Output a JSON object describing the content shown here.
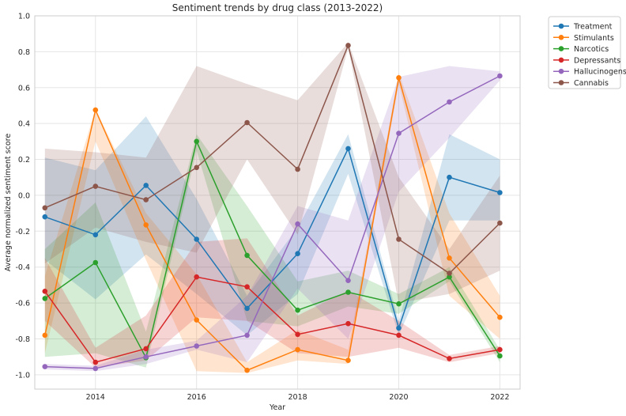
{
  "chart_data": {
    "type": "line",
    "title": "Sentiment trends by drug class (2013-2022)",
    "xlabel": "Year",
    "ylabel": "Average normalized sentiment score",
    "xlim": [
      2012.8,
      2022.4
    ],
    "ylim": [
      -1.08,
      1.0
    ],
    "x_ticks": [
      "2014",
      "2016",
      "2018",
      "2020",
      "2022"
    ],
    "y_ticks": [
      "-1.0",
      "-0.8",
      "-0.6",
      "-0.4",
      "-0.2",
      "0.0",
      "0.2",
      "0.4",
      "0.6",
      "0.8",
      "1.0"
    ],
    "grid": true,
    "legend_position": "outside-top-right",
    "series": [
      {
        "name": "Treatment",
        "color": "#1f77b4",
        "x": [
          2013,
          2014,
          2015,
          2016,
          2017,
          2018,
          2019,
          2020,
          2021,
          2022
        ],
        "y": [
          -0.12,
          -0.22,
          0.055,
          -0.245,
          -0.63,
          -0.325,
          0.26,
          -0.74,
          0.1,
          0.015
        ],
        "band_low": [
          -0.36,
          -0.58,
          -0.33,
          -0.55,
          -0.78,
          -0.55,
          0.12,
          -0.78,
          -0.14,
          -0.14
        ],
        "band_high": [
          0.21,
          0.14,
          0.44,
          -0.02,
          -0.56,
          -0.18,
          0.34,
          -0.7,
          0.34,
          0.2
        ]
      },
      {
        "name": "Stimulants",
        "color": "#ff7f0e",
        "x": [
          2013,
          2014,
          2015,
          2016,
          2017,
          2018,
          2019,
          2020,
          2021,
          2022
        ],
        "y": [
          -0.78,
          0.475,
          -0.165,
          -0.695,
          -0.975,
          -0.86,
          -0.92,
          0.655,
          -0.35,
          -0.68
        ],
        "band_low": [
          -0.88,
          0.3,
          -0.36,
          -0.98,
          -0.99,
          -0.92,
          -0.94,
          0.62,
          -0.56,
          -0.8
        ],
        "band_high": [
          -0.45,
          0.48,
          -0.1,
          -0.44,
          -0.93,
          -0.75,
          -0.86,
          0.68,
          -0.1,
          -0.56
        ]
      },
      {
        "name": "Narcotics",
        "color": "#2ca02c",
        "x": [
          2013,
          2014,
          2015,
          2016,
          2017,
          2018,
          2019,
          2020,
          2021,
          2022
        ],
        "y": [
          -0.575,
          -0.375,
          -0.905,
          0.3,
          -0.335,
          -0.64,
          -0.54,
          -0.605,
          -0.455,
          -0.895
        ],
        "band_low": [
          -0.9,
          -0.88,
          -0.96,
          0.25,
          -0.7,
          -0.73,
          -0.62,
          -0.66,
          -0.48,
          -0.93
        ],
        "band_high": [
          -0.3,
          -0.04,
          -0.76,
          0.34,
          -0.06,
          -0.48,
          -0.42,
          -0.55,
          -0.4,
          -0.86
        ]
      },
      {
        "name": "Depressants",
        "color": "#d62728",
        "x": [
          2013,
          2014,
          2015,
          2016,
          2017,
          2018,
          2019,
          2020,
          2021,
          2022
        ],
        "y": [
          -0.535,
          -0.93,
          -0.855,
          -0.455,
          -0.51,
          -0.775,
          -0.715,
          -0.78,
          -0.91,
          -0.86
        ],
        "band_low": [
          -0.7,
          -0.96,
          -0.92,
          -0.68,
          -0.7,
          -0.88,
          -0.9,
          -0.85,
          -0.93,
          -0.88
        ],
        "band_high": [
          -0.35,
          -0.85,
          -0.67,
          -0.26,
          -0.24,
          -0.67,
          -0.53,
          -0.7,
          -0.89,
          -0.84
        ]
      },
      {
        "name": "Hallucinogens",
        "color": "#9467bd",
        "x": [
          2013,
          2014,
          2015,
          2016,
          2017,
          2018,
          2019,
          2020,
          2021,
          2022
        ],
        "y": [
          -0.955,
          -0.965,
          -0.9,
          -0.84,
          -0.78,
          -0.16,
          -0.475,
          0.345,
          0.52,
          0.665
        ],
        "band_low": [
          -0.97,
          -0.98,
          -0.94,
          -0.86,
          -0.93,
          -0.52,
          -0.8,
          0.02,
          0.32,
          0.64
        ],
        "band_high": [
          -0.94,
          -0.95,
          -0.86,
          -0.81,
          -0.56,
          -0.06,
          -0.14,
          0.66,
          0.72,
          0.69
        ]
      },
      {
        "name": "Cannabis",
        "color": "#8c564b",
        "x": [
          2013,
          2014,
          2015,
          2016,
          2017,
          2018,
          2019,
          2020,
          2021,
          2022
        ],
        "y": [
          -0.07,
          0.05,
          -0.025,
          0.155,
          0.405,
          0.145,
          0.835,
          -0.245,
          -0.435,
          -0.155
        ],
        "band_low": [
          -0.38,
          -0.18,
          -0.26,
          -0.32,
          0.2,
          -0.22,
          0.82,
          -0.6,
          -0.55,
          -0.42
        ],
        "band_high": [
          0.26,
          0.24,
          0.21,
          0.72,
          0.62,
          0.53,
          0.85,
          0.1,
          -0.3,
          0.11
        ]
      }
    ]
  }
}
